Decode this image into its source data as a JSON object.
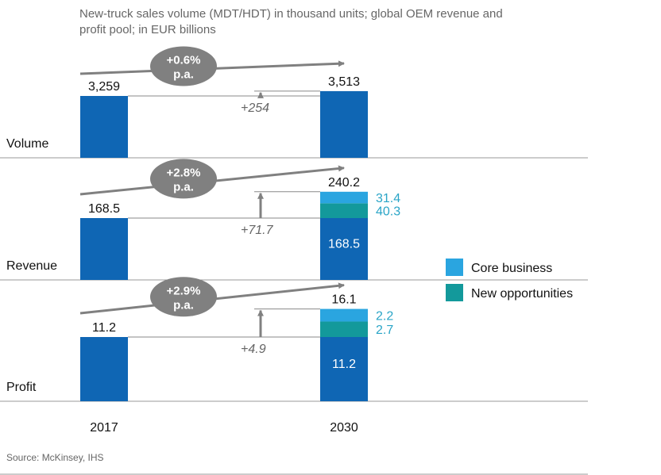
{
  "subtitle_line1": "New-truck sales volume (MDT/HDT) in thousand units; global OEM revenue and",
  "subtitle_line2": "profit pool; in EUR billions",
  "source": "Source: McKinsey, IHS",
  "years": [
    "2017",
    "2030"
  ],
  "legend": [
    {
      "label": "Core business",
      "color": "#2aa5e0"
    },
    {
      "label": "New opportunities",
      "color": "#13999b"
    }
  ],
  "colors": {
    "base": "#0f66b4",
    "core": "#2aa5e0",
    "new": "#13999b",
    "arrow": "#808080",
    "segment_label": "#2aa5c7"
  },
  "chart_data": [
    {
      "type": "bar",
      "label": "Volume",
      "categories": [
        "2017",
        "2030"
      ],
      "value_2017": 3259,
      "value_2030": 3513,
      "label_2017": "3,259",
      "label_2030": "3,513",
      "delta": "+254",
      "growth": "+0.6%",
      "growth_unit": "p.a.",
      "segments_2030": []
    },
    {
      "type": "bar",
      "label": "Revenue",
      "categories": [
        "2017",
        "2030"
      ],
      "value_2017": 168.5,
      "value_2030": 240.2,
      "label_2017": "168.5",
      "label_2030": "240.2",
      "delta": "+71.7",
      "growth": "+2.8%",
      "growth_unit": "p.a.",
      "base_label": "168.5",
      "segments_2030": [
        {
          "name": "New opportunities",
          "value": 40.3,
          "label": "40.3"
        },
        {
          "name": "Core business",
          "value": 31.4,
          "label": "31.4"
        }
      ]
    },
    {
      "type": "bar",
      "label": "Profit",
      "categories": [
        "2017",
        "2030"
      ],
      "value_2017": 11.2,
      "value_2030": 16.1,
      "label_2017": "11.2",
      "label_2030": "16.1",
      "delta": "+4.9",
      "growth": "+2.9%",
      "growth_unit": "p.a.",
      "base_label": "11.2",
      "segments_2030": [
        {
          "name": "New opportunities",
          "value": 2.7,
          "label": "2.7"
        },
        {
          "name": "Core business",
          "value": 2.2,
          "label": "2.2"
        }
      ]
    }
  ]
}
